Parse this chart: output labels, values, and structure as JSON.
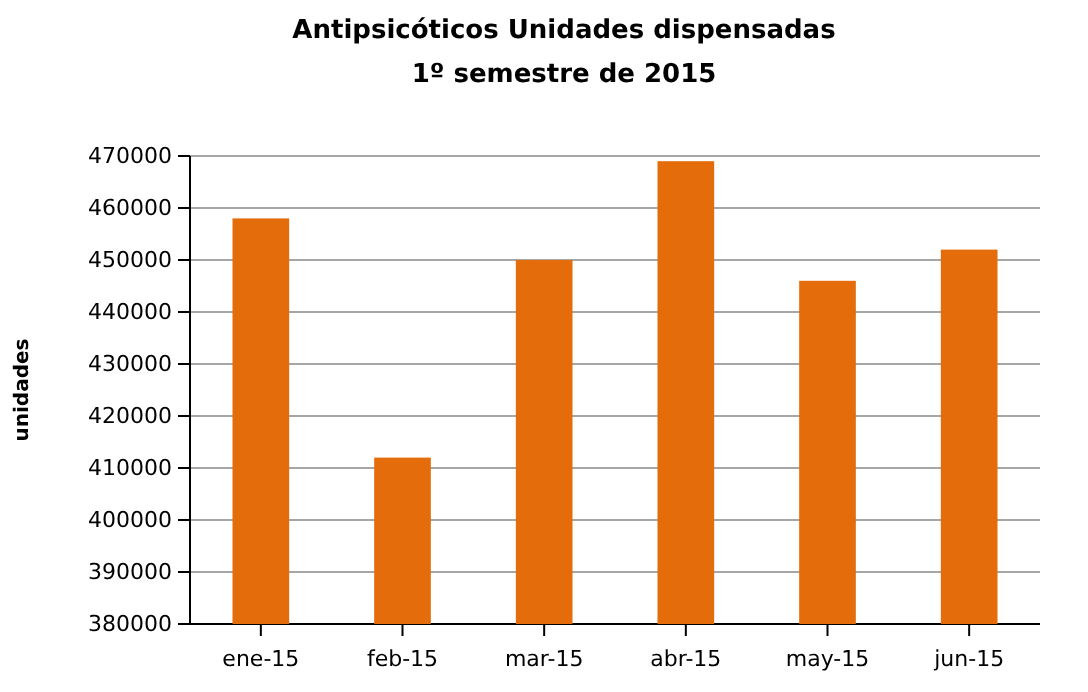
{
  "chart_data": {
    "type": "bar",
    "title": "Antipsicóticos Unidades dispensadas",
    "subtitle": "1º semestre de 2015",
    "ylabel": "unidades",
    "categories": [
      "ene-15",
      "feb-15",
      "mar-15",
      "abr-15",
      "may-15",
      "jun-15"
    ],
    "values": [
      458000,
      412000,
      450000,
      469000,
      446000,
      452000
    ],
    "color": "#e46c0a",
    "ylim": [
      380000,
      470000
    ],
    "yticks": [
      380000,
      390000,
      400000,
      410000,
      420000,
      430000,
      440000,
      450000,
      460000,
      470000
    ],
    "grid": "y"
  }
}
